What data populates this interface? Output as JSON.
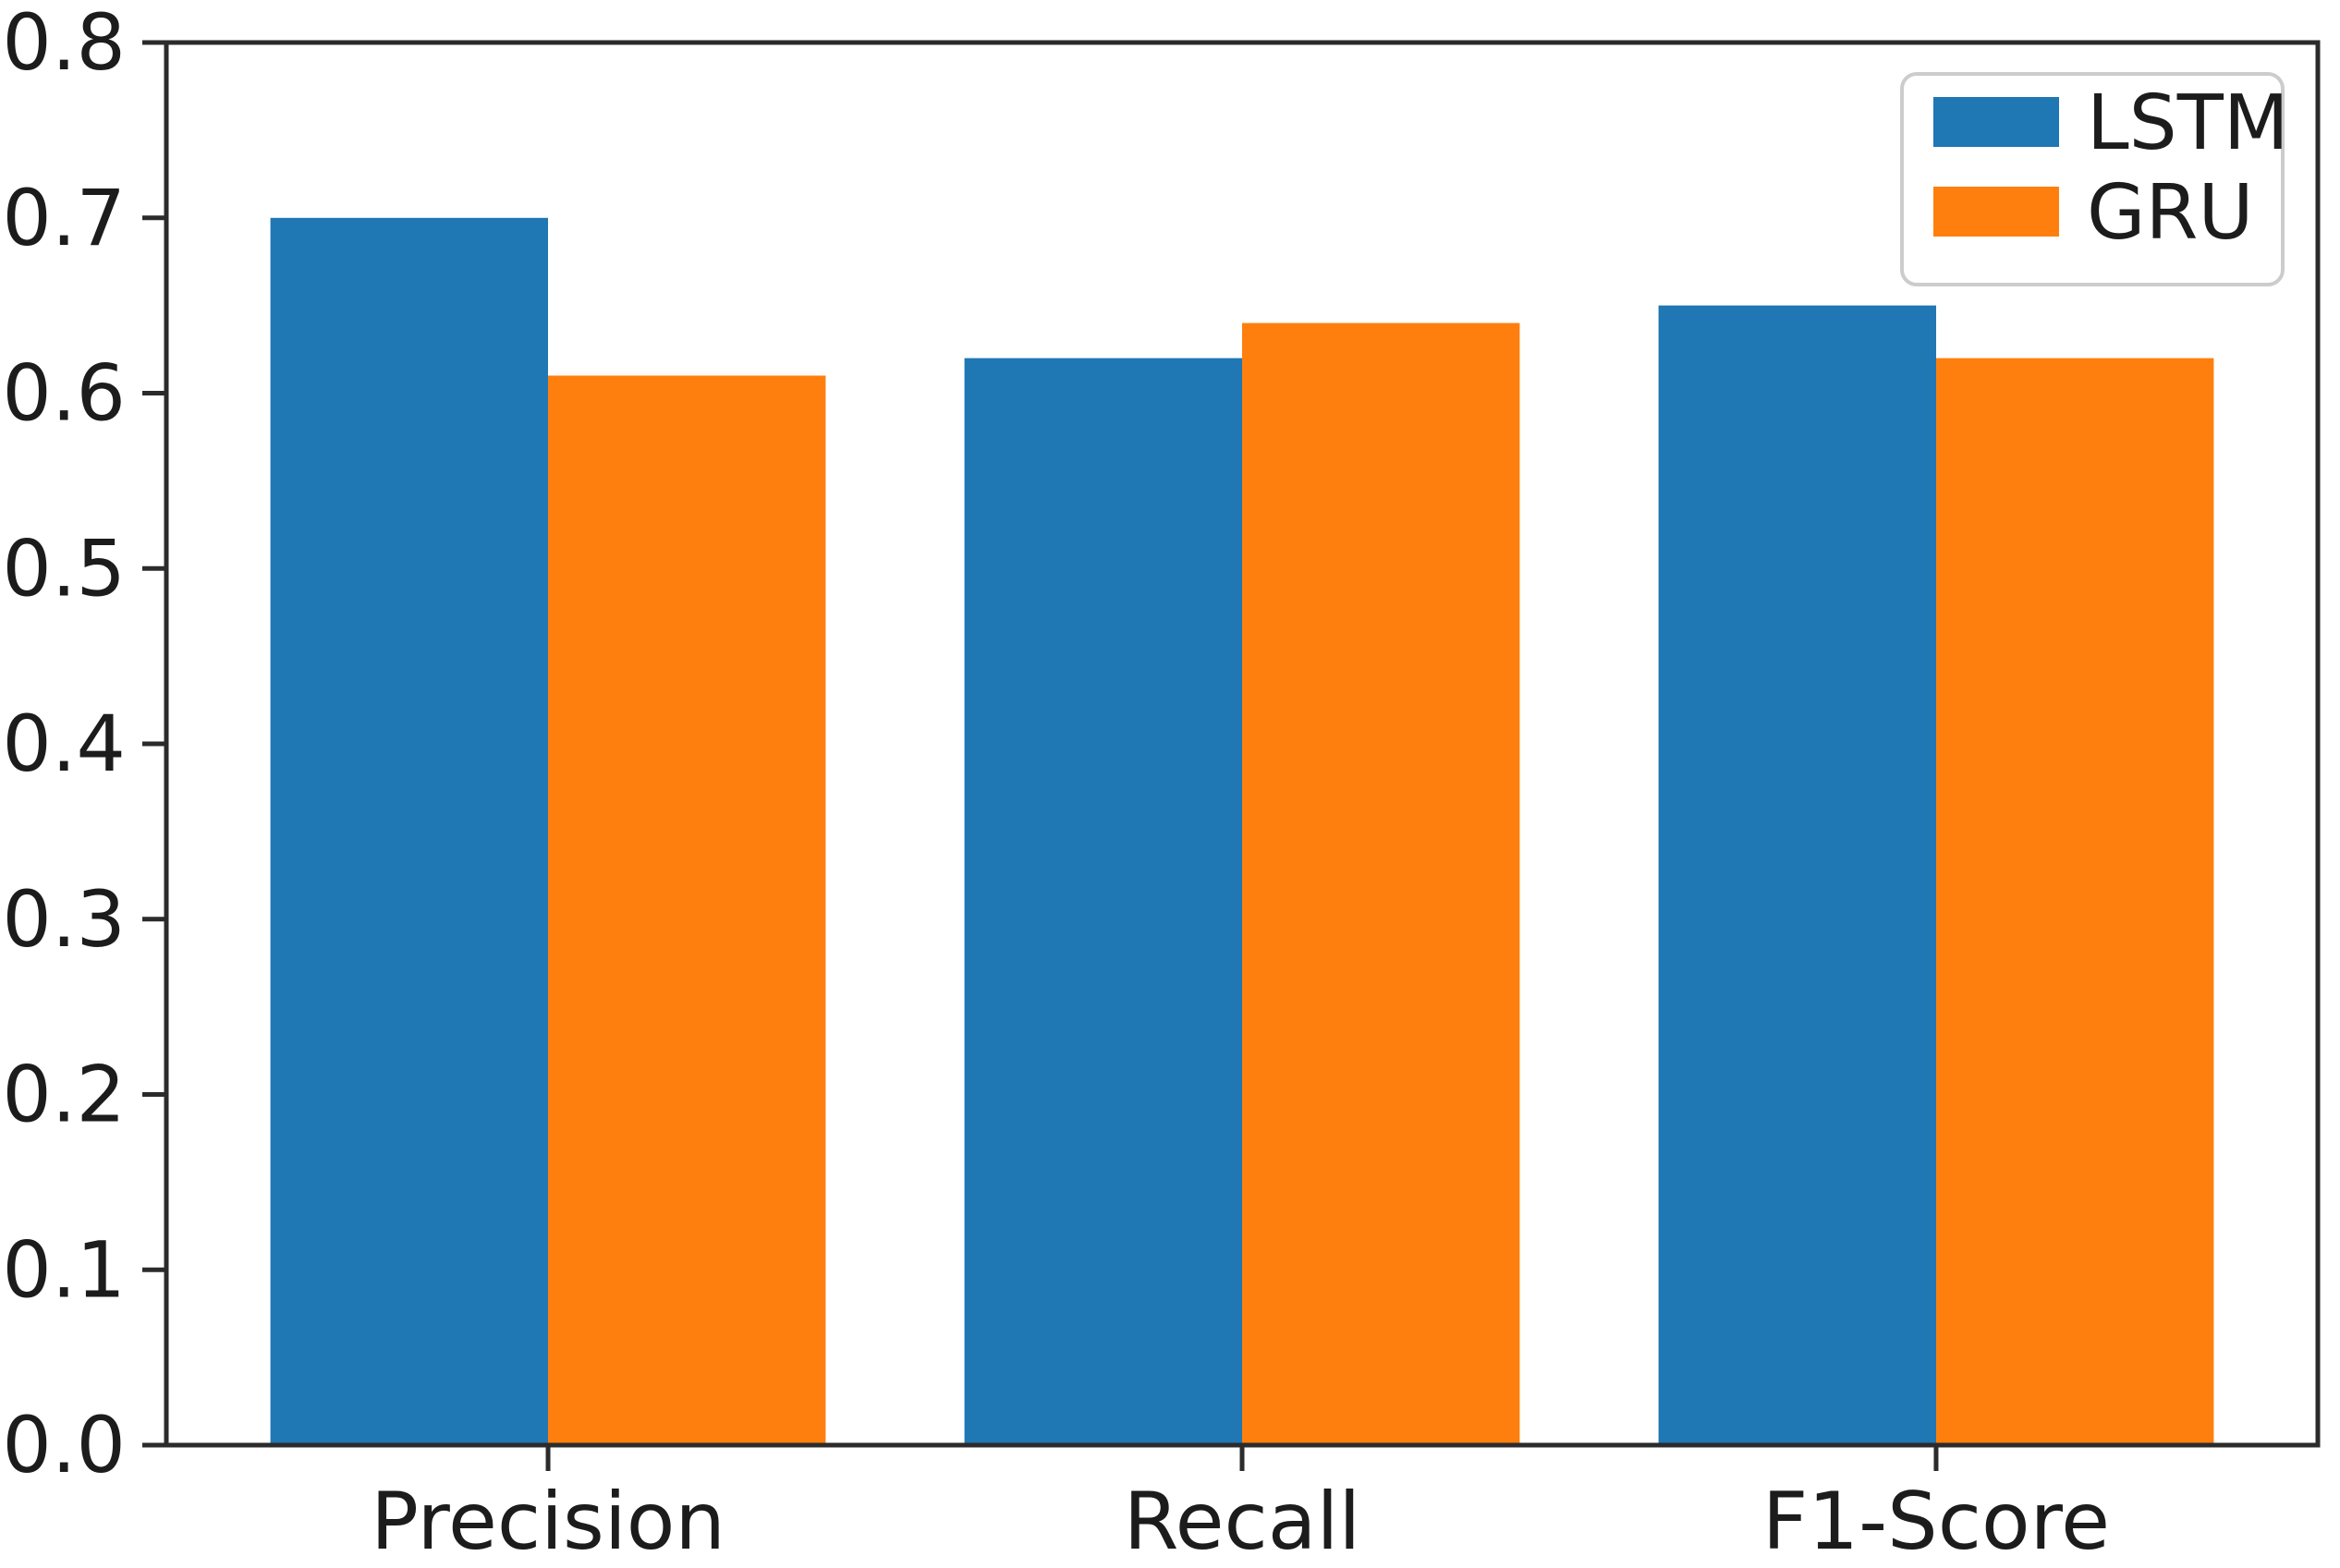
{
  "chart_data": {
    "type": "bar",
    "title": "",
    "xlabel": "",
    "ylabel": "",
    "categories": [
      "Precision",
      "Recall",
      "F1-Score"
    ],
    "series": [
      {
        "name": "LSTM",
        "color": "#1f77b4",
        "values": [
          0.7,
          0.62,
          0.65
        ]
      },
      {
        "name": "GRU",
        "color": "#ff7f0e",
        "values": [
          0.61,
          0.64,
          0.62
        ]
      }
    ],
    "ylim": [
      0.0,
      0.8
    ],
    "ytick_labels": [
      "0.0",
      "0.1",
      "0.2",
      "0.3",
      "0.4",
      "0.5",
      "0.6",
      "0.7",
      "0.8"
    ],
    "xlim": [
      -0.55,
      2.55
    ],
    "bar_width": 0.4,
    "grid": false,
    "legend": {
      "position": "upper-right",
      "entries": [
        "LSTM",
        "GRU"
      ]
    }
  },
  "style": {
    "background": "#ffffff",
    "text_color": "#1c1c1c",
    "spine_color": "#2b2b2b",
    "tick_color": "#2b2b2b",
    "legend_background": "#ffffff",
    "legend_border_color": "#cccccc"
  }
}
